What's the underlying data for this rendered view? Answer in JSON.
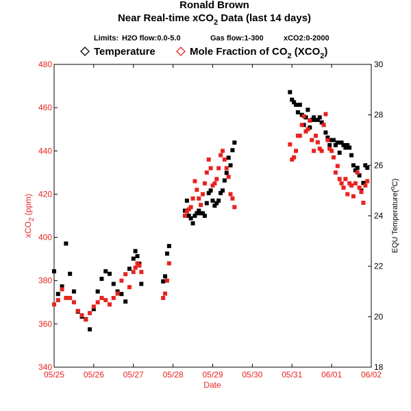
{
  "chart_data": {
    "type": "scatter",
    "title_line1": "Ronald Brown",
    "title_line2_pre": "Near Real-time xCO",
    "title_line2_sub": "2",
    "title_line2_post": " Data (last 14 days)",
    "limits": [
      {
        "label": "Limits:"
      },
      {
        "label": "H2O flow:0.0-5.0"
      },
      {
        "label": "Gas flow:1-300"
      },
      {
        "label": "xCO2:0-2000"
      }
    ],
    "legend": {
      "temperature": "Temperature",
      "co2_pre": "Mole Fraction of CO",
      "co2_sub1": "2",
      "co2_mid": " (XCO",
      "co2_sub2": "2",
      "co2_post": ")"
    },
    "xlabel": "Date",
    "ylabel_left_pre": "xCO",
    "ylabel_left_sub": "2",
    "ylabel_left_post": " (ppm)",
    "ylabel_right_pre": "EQU Temperature(",
    "ylabel_right_sup": "o",
    "ylabel_right_post": "C)",
    "xlim": [
      "05/25",
      "06/02"
    ],
    "ylim_left": [
      340,
      480
    ],
    "ylim_right": [
      18,
      30
    ],
    "x_ticks": [
      "05/25",
      "05/26",
      "05/27",
      "05/28",
      "05/29",
      "05/30",
      "05/31",
      "06/01",
      "06/02"
    ],
    "y_ticks_left": [
      340,
      360,
      380,
      400,
      420,
      440,
      460,
      480
    ],
    "y_ticks_right": [
      18,
      20,
      22,
      24,
      26,
      28,
      30
    ],
    "colors": {
      "co2": "#e8231f",
      "temperature": "#000000"
    },
    "series": [
      {
        "name": "Temperature",
        "axis": "right",
        "x_days_from_05_25": [
          0.0,
          0.1,
          0.2,
          0.3,
          0.4,
          0.5,
          0.6,
          0.7,
          0.8,
          0.9,
          1.0,
          1.1,
          1.2,
          1.3,
          1.4,
          1.5,
          1.6,
          1.7,
          1.8,
          1.9,
          2.0,
          2.05,
          2.1,
          2.15,
          2.2,
          2.75,
          2.8,
          2.85,
          2.9,
          3.3,
          3.35,
          3.4,
          3.45,
          3.5,
          3.55,
          3.6,
          3.65,
          3.7,
          3.75,
          3.8,
          3.85,
          3.9,
          3.95,
          4.0,
          4.05,
          4.1,
          4.15,
          4.2,
          4.25,
          4.3,
          4.35,
          4.4,
          4.45,
          4.5,
          4.55,
          5.95,
          6.0,
          6.05,
          6.1,
          6.15,
          6.2,
          6.25,
          6.3,
          6.35,
          6.4,
          6.45,
          6.5,
          6.55,
          6.6,
          6.65,
          6.7,
          6.75,
          6.8,
          6.85,
          6.9,
          6.95,
          7.0,
          7.05,
          7.1,
          7.15,
          7.2,
          7.25,
          7.3,
          7.35,
          7.4,
          7.45,
          7.5,
          7.55,
          7.6,
          7.65,
          7.7,
          7.75,
          7.8,
          7.85,
          7.9
        ],
        "values": [
          21.8,
          20.9,
          21.2,
          22.9,
          21.7,
          21.0,
          20.2,
          20.0,
          19.9,
          19.5,
          20.3,
          21.0,
          21.5,
          21.8,
          21.7,
          21.3,
          21.0,
          20.9,
          20.6,
          21.9,
          22.3,
          22.6,
          22.4,
          22.1,
          21.3,
          21.4,
          21.6,
          22.5,
          22.8,
          24.2,
          24.6,
          24.0,
          23.9,
          23.7,
          24.0,
          24.1,
          24.2,
          24.1,
          24.1,
          24.0,
          24.5,
          24.9,
          25.0,
          24.6,
          24.4,
          24.5,
          24.6,
          24.9,
          25.0,
          25.4,
          25.7,
          26.3,
          26.0,
          26.6,
          26.9,
          28.9,
          28.6,
          28.5,
          28.4,
          28.1,
          28.4,
          28.0,
          27.6,
          27.9,
          28.2,
          27.5,
          27.8,
          27.9,
          27.8,
          27.8,
          27.9,
          27.7,
          27.6,
          27.3,
          27.1,
          26.8,
          27.0,
          27.0,
          26.8,
          26.9,
          26.5,
          26.9,
          26.8,
          26.7,
          26.8,
          26.7,
          26.4,
          26.0,
          25.8,
          25.9,
          25.6,
          25.0,
          25.3,
          26.0,
          25.9
        ]
      },
      {
        "name": "Mole Fraction of CO2 (XCO2)",
        "axis": "left",
        "x_days_from_05_25": [
          0.0,
          0.1,
          0.2,
          0.3,
          0.4,
          0.5,
          0.6,
          0.7,
          0.8,
          0.9,
          1.0,
          1.1,
          1.2,
          1.3,
          1.4,
          1.5,
          1.6,
          1.7,
          1.8,
          1.9,
          2.0,
          2.05,
          2.1,
          2.15,
          2.2,
          2.75,
          2.8,
          2.85,
          2.9,
          3.3,
          3.35,
          3.4,
          3.45,
          3.5,
          3.55,
          3.6,
          3.65,
          3.7,
          3.75,
          3.8,
          3.85,
          3.9,
          3.95,
          4.0,
          4.05,
          4.1,
          4.15,
          4.2,
          4.25,
          4.3,
          4.35,
          4.4,
          4.45,
          4.5,
          4.55,
          5.95,
          6.0,
          6.05,
          6.1,
          6.15,
          6.2,
          6.25,
          6.3,
          6.35,
          6.4,
          6.45,
          6.5,
          6.55,
          6.6,
          6.65,
          6.7,
          6.75,
          6.8,
          6.85,
          6.9,
          6.95,
          7.0,
          7.05,
          7.1,
          7.15,
          7.2,
          7.25,
          7.3,
          7.35,
          7.4,
          7.45,
          7.5,
          7.55,
          7.6,
          7.65,
          7.7,
          7.75,
          7.8,
          7.85,
          7.9
        ],
        "values": [
          369,
          371,
          376,
          372,
          372,
          370,
          366,
          364,
          362,
          365,
          368,
          370,
          372,
          371,
          369,
          372,
          374,
          380,
          383,
          377,
          384,
          386,
          388,
          387,
          384,
          372,
          374,
          380,
          388,
          410,
          412,
          413,
          414,
          418,
          426,
          422,
          418,
          415,
          420,
          425,
          430,
          436,
          432,
          424,
          425,
          427,
          432,
          438,
          440,
          436,
          432,
          428,
          420,
          418,
          414,
          443,
          436,
          437,
          440,
          447,
          447,
          452,
          456,
          449,
          450,
          454,
          445,
          440,
          447,
          444,
          441,
          440,
          452,
          457,
          445,
          441,
          440,
          437,
          430,
          433,
          427,
          425,
          423,
          427,
          420,
          425,
          424,
          419,
          425,
          430,
          423,
          421,
          416,
          424,
          426
        ]
      }
    ]
  }
}
